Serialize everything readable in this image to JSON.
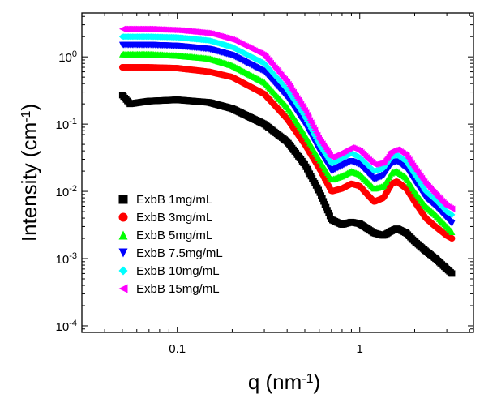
{
  "chart_data": {
    "type": "scatter",
    "x_scale": "log",
    "y_scale": "log",
    "xlim": [
      0.03,
      4.2
    ],
    "ylim": [
      8e-05,
      4.5
    ],
    "x_ticks": [
      {
        "value": 0.1,
        "label": "0.1"
      },
      {
        "value": 1,
        "label": "1"
      }
    ],
    "y_ticks": [
      {
        "value": 0.0001,
        "base": "10",
        "exp": "-4"
      },
      {
        "value": 0.001,
        "base": "10",
        "exp": "-3"
      },
      {
        "value": 0.01,
        "base": "10",
        "exp": "-2"
      },
      {
        "value": 0.1,
        "base": "10",
        "exp": "-1"
      },
      {
        "value": 1,
        "label": "10",
        "exp": "0"
      }
    ],
    "xlabel": {
      "main": "q (nm",
      "sup": "-1",
      "tail": ")"
    },
    "ylabel": {
      "main": "Intensity (cm",
      "sup": "-1",
      "tail": ")"
    },
    "grid": false,
    "legend_position": "bottom-left",
    "x_base": [
      0.05,
      0.055,
      0.07,
      0.1,
      0.15,
      0.2,
      0.3,
      0.4,
      0.5,
      0.6,
      0.7,
      0.8,
      0.9,
      1.0,
      1.1,
      1.2,
      1.35,
      1.5,
      1.6,
      1.8,
      2.0,
      2.3,
      2.6,
      3.0,
      3.2
    ],
    "series": [
      {
        "name": "ExbB 1mg/mL",
        "marker": "square",
        "color": "#000000",
        "y": [
          0.27,
          0.2,
          0.22,
          0.23,
          0.21,
          0.17,
          0.1,
          0.055,
          0.025,
          0.01,
          0.0038,
          0.0032,
          0.0035,
          0.0033,
          0.0028,
          0.0024,
          0.0022,
          0.0026,
          0.0028,
          0.0024,
          0.0018,
          0.0013,
          0.001,
          0.0007,
          0.0006
        ]
      },
      {
        "name": "ExbB 3mg/mL",
        "marker": "circle",
        "color": "#ff0000",
        "y": [
          0.7,
          0.7,
          0.7,
          0.68,
          0.6,
          0.5,
          0.28,
          0.12,
          0.05,
          0.022,
          0.01,
          0.011,
          0.013,
          0.012,
          0.009,
          0.007,
          0.008,
          0.013,
          0.014,
          0.011,
          0.007,
          0.004,
          0.003,
          0.0022,
          0.002
        ]
      },
      {
        "name": "ExbB 5mg/mL",
        "marker": "triangle-up",
        "color": "#00ff00",
        "y": [
          1.1,
          1.1,
          1.1,
          1.05,
          0.95,
          0.75,
          0.42,
          0.18,
          0.07,
          0.03,
          0.015,
          0.017,
          0.02,
          0.018,
          0.014,
          0.011,
          0.012,
          0.019,
          0.02,
          0.016,
          0.01,
          0.006,
          0.0045,
          0.003,
          0.0025
        ]
      },
      {
        "name": "ExbB 7.5mg/mL",
        "marker": "triangle-down",
        "color": "#0000ff",
        "y": [
          1.5,
          1.5,
          1.5,
          1.45,
          1.3,
          1.05,
          0.6,
          0.25,
          0.1,
          0.04,
          0.02,
          0.024,
          0.028,
          0.025,
          0.019,
          0.015,
          0.017,
          0.026,
          0.028,
          0.022,
          0.014,
          0.008,
          0.006,
          0.004,
          0.0033
        ]
      },
      {
        "name": "ExbB 10mg/mL",
        "marker": "diamond",
        "color": "#00ffff",
        "y": [
          2.0,
          2.0,
          2.0,
          1.95,
          1.75,
          1.4,
          0.8,
          0.33,
          0.13,
          0.05,
          0.026,
          0.031,
          0.037,
          0.032,
          0.025,
          0.02,
          0.022,
          0.033,
          0.035,
          0.028,
          0.018,
          0.01,
          0.0075,
          0.005,
          0.0045
        ]
      },
      {
        "name": "ExbB 15mg/mL",
        "marker": "triangle-left",
        "color": "#ff00ff",
        "y": [
          2.6,
          2.6,
          2.6,
          2.5,
          2.25,
          1.8,
          1.05,
          0.42,
          0.16,
          0.06,
          0.032,
          0.038,
          0.045,
          0.04,
          0.031,
          0.025,
          0.027,
          0.04,
          0.042,
          0.034,
          0.022,
          0.013,
          0.009,
          0.006,
          0.0055
        ]
      }
    ]
  }
}
